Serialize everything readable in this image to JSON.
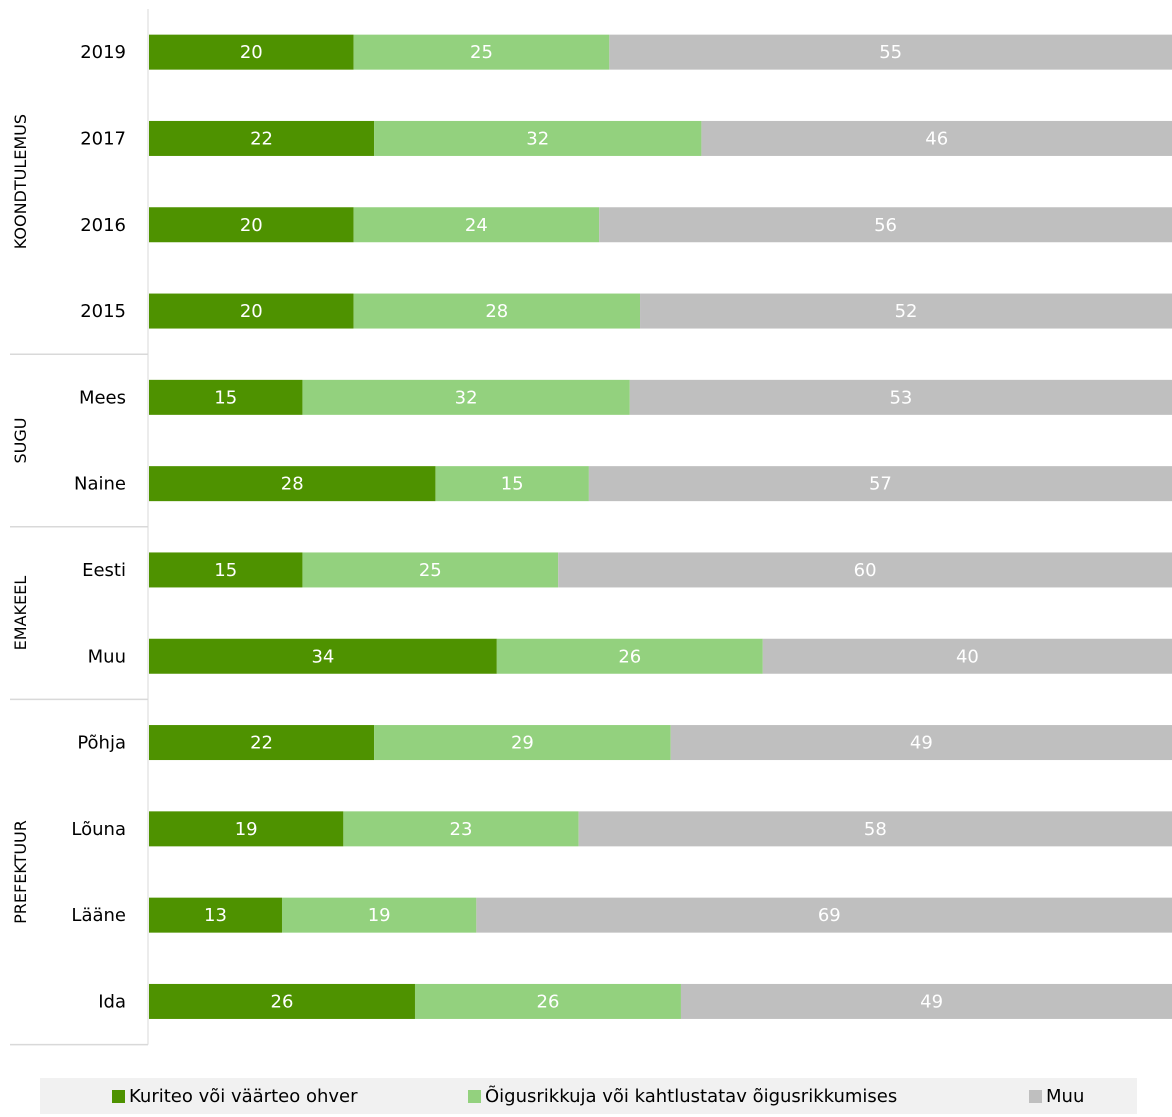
{
  "colors": {
    "series": [
      "#4e9200",
      "#93d17e",
      "#bfbfbf"
    ],
    "divider": "#d9d9d9",
    "legend_bg": "#f1f1f1"
  },
  "chart_data": {
    "type": "bar",
    "orientation": "horizontal",
    "stacked": true,
    "xlim": [
      0,
      100
    ],
    "grid": false,
    "legend_position": "bottom",
    "groups": [
      {
        "label": "KOONDTULEMUS",
        "categories": [
          "2019",
          "2017",
          "2016",
          "2015"
        ]
      },
      {
        "label": "SUGU",
        "categories": [
          "Mees",
          "Naine"
        ]
      },
      {
        "label": "EMAKEEL",
        "categories": [
          "Eesti",
          "Muu"
        ]
      },
      {
        "label": "PREFEKTUUR",
        "categories": [
          "Põhja",
          "Lõuna",
          "Lääne",
          "Ida"
        ]
      }
    ],
    "categories": [
      "2019",
      "2017",
      "2016",
      "2015",
      "Mees",
      "Naine",
      "Eesti",
      "Muu",
      "Põhja",
      "Lõuna",
      "Lääne",
      "Ida"
    ],
    "series": [
      {
        "name": "Kuriteo või väärteo ohver",
        "values": [
          20,
          22,
          20,
          20,
          15,
          28,
          15,
          34,
          22,
          19,
          13,
          26
        ]
      },
      {
        "name": "Õigusrikkuja või kahtlustatav õigusrikkumises",
        "values": [
          25,
          32,
          24,
          28,
          32,
          15,
          25,
          26,
          29,
          23,
          19,
          26
        ]
      },
      {
        "name": "Muu",
        "values": [
          55,
          46,
          56,
          52,
          53,
          57,
          60,
          40,
          49,
          58,
          69,
          49
        ]
      }
    ]
  }
}
